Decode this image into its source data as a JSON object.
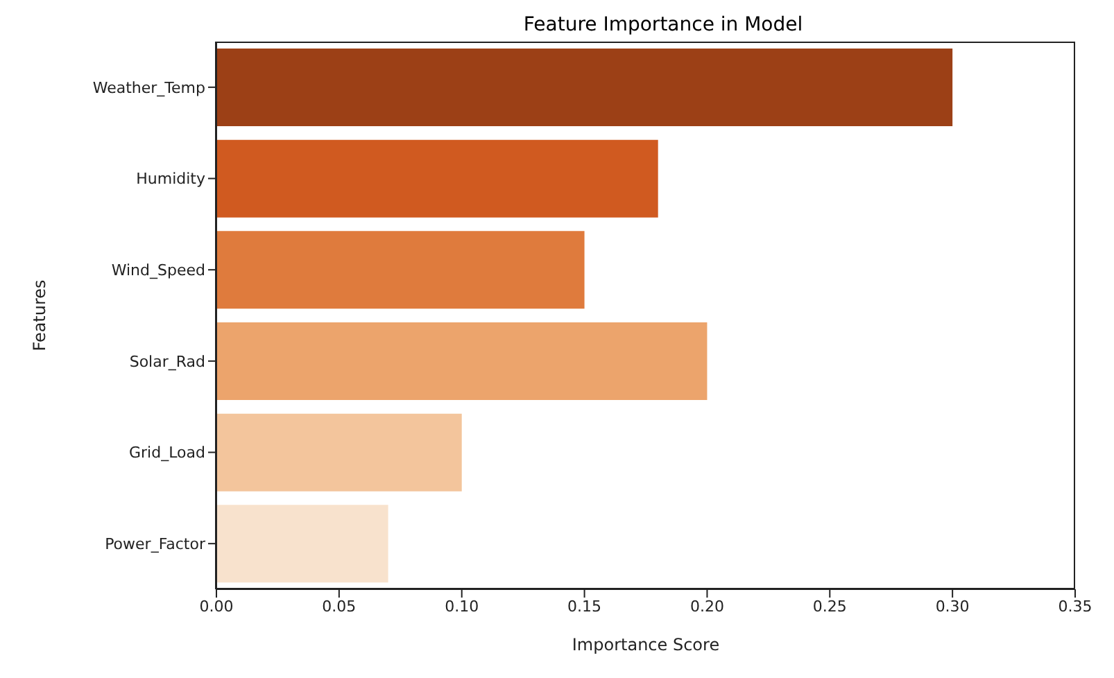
{
  "chart_data": {
    "type": "bar",
    "orientation": "horizontal",
    "title": "Feature Importance in Model",
    "xlabel": "Importance Score",
    "ylabel": "Features",
    "categories": [
      "Weather_Temp",
      "Humidity",
      "Wind_Speed",
      "Solar_Rad",
      "Grid_Load",
      "Power_Factor"
    ],
    "values": [
      0.3,
      0.18,
      0.15,
      0.2,
      0.1,
      0.07
    ],
    "colors": [
      "#9c4016",
      "#d05a20",
      "#df7b3d",
      "#eca46c",
      "#f3c59c",
      "#f8e2cd"
    ],
    "xlim": [
      0,
      0.35
    ],
    "xticks": [
      {
        "value": 0,
        "label": "0.00"
      },
      {
        "value": 0.05,
        "label": "0.05"
      },
      {
        "value": 0.1,
        "label": "0.10"
      },
      {
        "value": 0.15,
        "label": "0.15"
      },
      {
        "value": 0.2,
        "label": "0.20"
      },
      {
        "value": 0.25,
        "label": "0.25"
      },
      {
        "value": 0.3,
        "label": "0.30"
      },
      {
        "value": 0.35,
        "label": "0.35"
      }
    ],
    "grid": false,
    "legend": false
  }
}
